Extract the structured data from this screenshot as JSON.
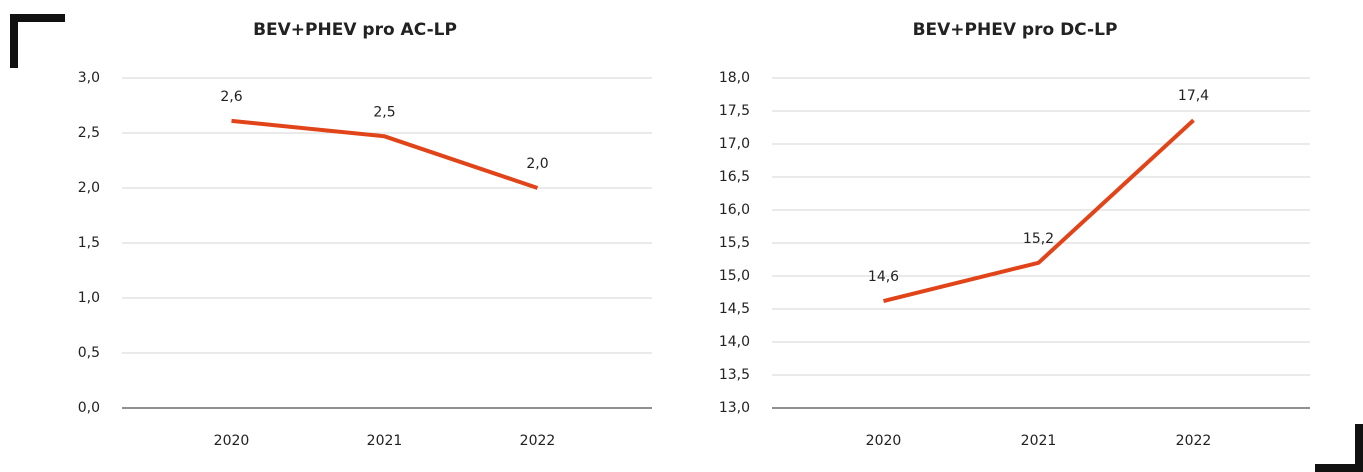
{
  "chart_data": [
    {
      "type": "line",
      "title": "BEV+PHEV pro AC-LP",
      "categories": [
        "2020",
        "2021",
        "2022"
      ],
      "series": [
        {
          "color": "#e2441a",
          "values": [
            2.61,
            2.47,
            2.0
          ],
          "value_labels": [
            "2,6",
            "2,5",
            "2,0"
          ]
        }
      ],
      "ylim": [
        0,
        3
      ],
      "yticks": [
        {
          "value": 0,
          "label": "0,0"
        },
        {
          "value": 0.5,
          "label": "0,5"
        },
        {
          "value": 1,
          "label": "1,0"
        },
        {
          "value": 1.5,
          "label": "1,5"
        },
        {
          "value": 2,
          "label": "2,0"
        },
        {
          "value": 2.5,
          "label": "2,5"
        },
        {
          "value": 3,
          "label": "3,0"
        }
      ],
      "grid": true
    },
    {
      "type": "line",
      "title": "BEV+PHEV pro DC-LP",
      "categories": [
        "2020",
        "2021",
        "2022"
      ],
      "series": [
        {
          "color": "#e2441a",
          "values": [
            14.62,
            15.2,
            17.36
          ],
          "value_labels": [
            "14,6",
            "15,2",
            "17,4"
          ]
        }
      ],
      "ylim": [
        13,
        18
      ],
      "yticks": [
        {
          "value": 13,
          "label": "13,0"
        },
        {
          "value": 13.5,
          "label": "13,5"
        },
        {
          "value": 14,
          "label": "14,0"
        },
        {
          "value": 14.5,
          "label": "14,5"
        },
        {
          "value": 15,
          "label": "15,0"
        },
        {
          "value": 15.5,
          "label": "15,5"
        },
        {
          "value": 16,
          "label": "16,0"
        },
        {
          "value": 16.5,
          "label": "16,5"
        },
        {
          "value": 17,
          "label": "17,0"
        },
        {
          "value": 17.5,
          "label": "17,5"
        },
        {
          "value": 18,
          "label": "18,0"
        }
      ],
      "grid": true
    }
  ]
}
